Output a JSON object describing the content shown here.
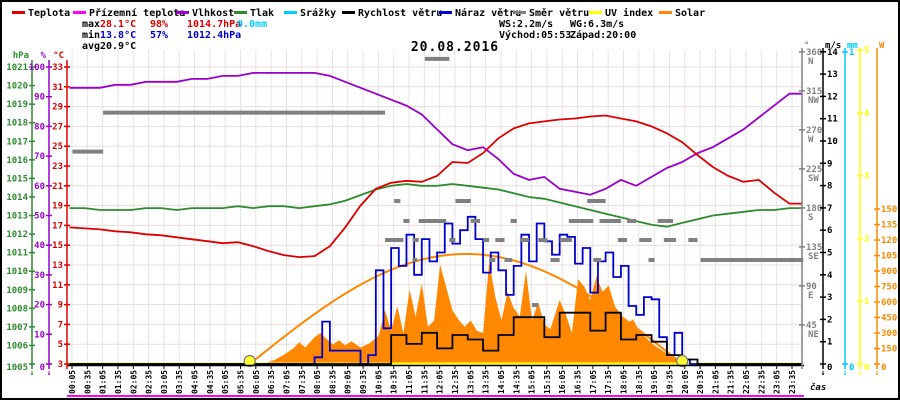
{
  "title": "20.08.2016",
  "legend": {
    "items": [
      {
        "label": "Teplota",
        "color": "#dd0000"
      },
      {
        "label": "Přízemní teplota",
        "color": "#ff00ff"
      },
      {
        "label": "Vlhkost",
        "color": "#9900cc"
      },
      {
        "label": "Tlak",
        "color": "#2e8b2e"
      },
      {
        "label": "Srážky",
        "color": "#00ccff"
      },
      {
        "label": "Rychlost větru",
        "color": "#000000"
      },
      {
        "label": "Náraz větru",
        "color": "#0000cc"
      },
      {
        "label": "Směr větru",
        "color": "#808080"
      },
      {
        "label": "UV index",
        "color": "#ffff00"
      },
      {
        "label": "Solar",
        "color": "#ff8800"
      }
    ]
  },
  "stats": {
    "max": {
      "label": "max",
      "temp": "28.1°C",
      "hum": "98%",
      "pres": "1014.7hPa",
      "rain": "0.0mm",
      "color": "#dd0000",
      "rain_color": "#00ccff"
    },
    "min": {
      "label": "min",
      "temp": "13.8°C",
      "hum": "57%",
      "pres": "1012.4hPa",
      "color": "#0000cc"
    },
    "avg": {
      "label": "avg",
      "temp": "20.9°C",
      "color": "#000000"
    },
    "wind": {
      "ws": "WS:2.2m/s",
      "wg": "WG:6.3m/s"
    },
    "sun": {
      "sunrise": "Východ:05:53",
      "sunset": "Západ:20:00"
    }
  },
  "x_axis": {
    "label": "čas",
    "ticks": [
      "00:05",
      "00:35",
      "01:05",
      "01:35",
      "02:05",
      "02:35",
      "03:05",
      "03:35",
      "04:05",
      "04:35",
      "05:05",
      "05:35",
      "06:05",
      "06:35",
      "07:05",
      "07:35",
      "08:05",
      "08:35",
      "09:05",
      "09:35",
      "10:05",
      "10:35",
      "11:05",
      "11:35",
      "12:05",
      "12:35",
      "13:05",
      "13:35",
      "14:05",
      "14:35",
      "15:05",
      "15:35",
      "16:05",
      "16:35",
      "17:05",
      "17:35",
      "18:05",
      "18:35",
      "19:05",
      "19:35",
      "20:05",
      "20:35",
      "21:05",
      "21:35",
      "22:05",
      "22:35",
      "23:05",
      "23:35"
    ]
  },
  "axes": {
    "left": [
      {
        "id": "pres",
        "header": "hPa",
        "color": "#2e8b2e",
        "ticks": [
          1005,
          1006,
          1007,
          1008,
          1009,
          1010,
          1011,
          1012,
          1013,
          1014,
          1015,
          1016,
          1017,
          1018,
          1019,
          1020,
          1021
        ]
      },
      {
        "id": "hum",
        "header": "%",
        "color": "#9900cc",
        "ticks": [
          0,
          10,
          20,
          30,
          40,
          50,
          60,
          70,
          80,
          90,
          100
        ]
      },
      {
        "id": "temp",
        "header": "°C",
        "color": "#dd0000",
        "ticks": [
          3,
          5,
          7,
          9,
          11,
          13,
          15,
          17,
          19,
          21,
          23,
          25,
          27,
          29,
          31,
          33
        ]
      }
    ],
    "right": [
      {
        "id": "dir",
        "header": "°",
        "color": "#808080",
        "ticks": [
          {
            "v": 45,
            "t": "45",
            "s": "NE"
          },
          {
            "v": 90,
            "t": "90",
            "s": "E"
          },
          {
            "v": 135,
            "t": "135",
            "s": "SE"
          },
          {
            "v": 180,
            "t": "180",
            "s": "S"
          },
          {
            "v": 225,
            "t": "225",
            "s": "SW"
          },
          {
            "v": 270,
            "t": "270",
            "s": "W"
          },
          {
            "v": 315,
            "t": "315",
            "s": "NW"
          },
          {
            "v": 360,
            "t": "360",
            "s": "N"
          }
        ]
      },
      {
        "id": "wind",
        "header": "m/s",
        "color": "#000000",
        "ticks": [
          0,
          1,
          2,
          3,
          4,
          5,
          6,
          7,
          8,
          9,
          10,
          11,
          12,
          13,
          14
        ]
      },
      {
        "id": "mm",
        "header": "mm",
        "color": "#00ccff",
        "ticks": [
          0,
          1
        ]
      },
      {
        "id": "uv",
        "header": "",
        "color": "#ffff00",
        "ticks": [
          0,
          1,
          2,
          3,
          4,
          5
        ]
      },
      {
        "id": "solar",
        "header": "W",
        "color": "#ff8800",
        "ticks": [
          0,
          150,
          300,
          450,
          600,
          750,
          900,
          1050,
          1200,
          1350,
          1500
        ]
      }
    ]
  },
  "chart_data": {
    "type": "line",
    "date": "20.08.2016",
    "time_start": "00:05",
    "time_end": "23:35",
    "time_step_minutes": 30,
    "series": [
      {
        "name": "Teplota",
        "unit": "°C",
        "axis": "temp",
        "color": "#dd0000",
        "style": "line",
        "t_step": 0.5,
        "values": [
          16.8,
          16.7,
          16.6,
          16.4,
          16.3,
          16.1,
          16.0,
          15.8,
          15.6,
          15.4,
          15.2,
          15.3,
          14.9,
          14.4,
          14.0,
          13.8,
          13.9,
          14.9,
          16.8,
          19.0,
          20.7,
          21.3,
          21.5,
          21.4,
          22.0,
          23.4,
          23.3,
          24.3,
          25.8,
          26.8,
          27.3,
          27.5,
          27.7,
          27.8,
          28.0,
          28.1,
          27.8,
          27.5,
          27.0,
          26.3,
          25.4,
          24.1,
          22.9,
          22.0,
          21.4,
          21.6,
          20.3,
          19.2
        ]
      },
      {
        "name": "Vlhkost",
        "unit": "%",
        "axis": "hum",
        "color": "#9900cc",
        "style": "line",
        "t_step": 0.5,
        "values": [
          93,
          93,
          93,
          94,
          94,
          95,
          95,
          95,
          96,
          96,
          97,
          97,
          98,
          98,
          98,
          98,
          98,
          97,
          95,
          93,
          91,
          89,
          87,
          84,
          79,
          74,
          72,
          73,
          69,
          64,
          62,
          63,
          59,
          58,
          57,
          59,
          62,
          60,
          63,
          66,
          68,
          71,
          73,
          76,
          79,
          83,
          87,
          91
        ]
      },
      {
        "name": "Tlak",
        "unit": "hPa",
        "axis": "pres",
        "color": "#2e8b2e",
        "style": "line",
        "t_step": 0.5,
        "values": [
          1013.4,
          1013.4,
          1013.3,
          1013.3,
          1013.3,
          1013.4,
          1013.4,
          1013.3,
          1013.4,
          1013.4,
          1013.4,
          1013.5,
          1013.4,
          1013.5,
          1013.5,
          1013.4,
          1013.5,
          1013.6,
          1013.8,
          1014.1,
          1014.4,
          1014.6,
          1014.7,
          1014.6,
          1014.6,
          1014.7,
          1014.6,
          1014.5,
          1014.4,
          1014.2,
          1014.0,
          1013.9,
          1013.7,
          1013.5,
          1013.3,
          1013.1,
          1012.9,
          1012.7,
          1012.5,
          1012.4,
          1012.6,
          1012.8,
          1013.0,
          1013.1,
          1013.2,
          1013.3,
          1013.3,
          1013.4
        ]
      },
      {
        "name": "Rychlost větru",
        "unit": "m/s",
        "axis": "wind",
        "color": "#000000",
        "style": "step",
        "t_step": 0.5,
        "values": [
          0,
          0,
          0,
          0,
          0,
          0,
          0,
          0,
          0,
          0,
          0,
          0,
          0,
          0,
          0,
          0,
          0,
          0,
          0,
          0,
          0,
          1.3,
          0.9,
          1.4,
          0.7,
          1.3,
          1.1,
          0.6,
          1.3,
          2.1,
          2.1,
          1.2,
          2.3,
          2.3,
          1.5,
          2.3,
          1.1,
          1.3,
          1.0,
          0.4,
          0.2,
          0,
          0,
          0,
          0,
          0,
          0,
          0
        ]
      },
      {
        "name": "Náraz větru",
        "unit": "m/s",
        "axis": "wind",
        "color": "#0000cc",
        "style": "step",
        "t_step": 0.25,
        "values": [
          0,
          0,
          0,
          0,
          0,
          0,
          0,
          0,
          0,
          0,
          0,
          0,
          0,
          0,
          0,
          0,
          0,
          0,
          0,
          0,
          0,
          0,
          0,
          0,
          0,
          0,
          0,
          0,
          0,
          0,
          0,
          0,
          0.3,
          1.9,
          0.6,
          0.6,
          0.6,
          0.6,
          0,
          0.4,
          4.2,
          1.6,
          5.2,
          4.4,
          5.8,
          4.0,
          5.6,
          4.6,
          5.0,
          6.3,
          5.4,
          6.0,
          6.6,
          5.6,
          4.1,
          5.0,
          4.2,
          3.1,
          4.4,
          5.8,
          4.6,
          6.3,
          5.5,
          4.9,
          5.8,
          5.7,
          4.5,
          5.2,
          3.2,
          4.6,
          5.0,
          3.9,
          4.4,
          2.6,
          2.2,
          3.0,
          2.9,
          1.2,
          0.4,
          1.4,
          0.2,
          0,
          0,
          0,
          0,
          0,
          0,
          0,
          0,
          0,
          0,
          0,
          0,
          0,
          0,
          0
        ]
      },
      {
        "name": "UV index",
        "unit": "",
        "axis": "uv",
        "color": "#ffff00",
        "style": "constant",
        "value": 0
      },
      {
        "name": "Srážky",
        "unit": "mm",
        "axis": "mm",
        "color": "#00ccff",
        "style": "constant",
        "value": 0
      },
      {
        "name": "Přízemní teplota",
        "unit": "°C",
        "axis": "temp",
        "color": "#ff00ff",
        "style": "offplot-line"
      }
    ],
    "solar_actual": {
      "name": "Solar",
      "unit": "W",
      "axis": "solar",
      "color": "#ff8800",
      "points": [
        [
          6.4,
          10
        ],
        [
          6.7,
          40
        ],
        [
          7.0,
          90
        ],
        [
          7.3,
          150
        ],
        [
          7.5,
          210
        ],
        [
          7.7,
          160
        ],
        [
          8.0,
          260
        ],
        [
          8.2,
          300
        ],
        [
          8.4,
          240
        ],
        [
          8.6,
          190
        ],
        [
          8.8,
          230
        ],
        [
          9.0,
          180
        ],
        [
          9.2,
          220
        ],
        [
          9.5,
          160
        ],
        [
          9.8,
          200
        ],
        [
          10.1,
          280
        ],
        [
          10.3,
          520
        ],
        [
          10.5,
          320
        ],
        [
          10.7,
          560
        ],
        [
          10.9,
          300
        ],
        [
          11.1,
          720
        ],
        [
          11.3,
          460
        ],
        [
          11.5,
          780
        ],
        [
          11.7,
          360
        ],
        [
          11.9,
          420
        ],
        [
          12.1,
          960
        ],
        [
          12.3,
          740
        ],
        [
          12.5,
          520
        ],
        [
          12.7,
          430
        ],
        [
          12.9,
          360
        ],
        [
          13.1,
          420
        ],
        [
          13.3,
          320
        ],
        [
          13.5,
          300
        ],
        [
          13.7,
          990
        ],
        [
          13.9,
          650
        ],
        [
          14.1,
          420
        ],
        [
          14.3,
          700
        ],
        [
          14.5,
          540
        ],
        [
          14.7,
          460
        ],
        [
          14.9,
          900
        ],
        [
          15.1,
          420
        ],
        [
          15.3,
          600
        ],
        [
          15.5,
          380
        ],
        [
          15.7,
          340
        ],
        [
          16.0,
          620
        ],
        [
          16.2,
          480
        ],
        [
          16.4,
          300
        ],
        [
          16.6,
          820
        ],
        [
          16.8,
          750
        ],
        [
          17.0,
          620
        ],
        [
          17.2,
          850
        ],
        [
          17.4,
          700
        ],
        [
          17.6,
          760
        ],
        [
          17.8,
          560
        ],
        [
          18.0,
          480
        ],
        [
          18.2,
          400
        ],
        [
          18.4,
          430
        ],
        [
          18.6,
          320
        ],
        [
          18.8,
          260
        ],
        [
          19.0,
          200
        ],
        [
          19.2,
          160
        ],
        [
          19.5,
          100
        ],
        [
          19.8,
          40
        ],
        [
          20.0,
          0
        ]
      ]
    },
    "solar_theoretical": {
      "start": 5.883,
      "end": 20.0,
      "peak": 1065,
      "color": "#ff8800"
    },
    "wind_direction_segments": {
      "unit": "°",
      "color": "#808080",
      "segments": [
        [
          0.1,
          1.1,
          245
        ],
        [
          1.1,
          10.3,
          290
        ],
        [
          11.6,
          12.4,
          352
        ],
        [
          10.6,
          10.8,
          188
        ],
        [
          12.6,
          13.1,
          188
        ],
        [
          16.9,
          17.5,
          188
        ],
        [
          10.9,
          11.1,
          165
        ],
        [
          11.4,
          12.3,
          165
        ],
        [
          13.1,
          13.4,
          165
        ],
        [
          14.4,
          14.6,
          165
        ],
        [
          16.3,
          17.1,
          165
        ],
        [
          17.3,
          18.0,
          165
        ],
        [
          18.2,
          18.5,
          165
        ],
        [
          19.2,
          19.7,
          165
        ],
        [
          10.3,
          10.9,
          143
        ],
        [
          11.2,
          11.4,
          143
        ],
        [
          12.4,
          12.6,
          143
        ],
        [
          13.5,
          13.7,
          143
        ],
        [
          13.9,
          14.2,
          143
        ],
        [
          14.7,
          15.0,
          143
        ],
        [
          15.3,
          15.6,
          143
        ],
        [
          16.0,
          16.4,
          143
        ],
        [
          17.9,
          18.2,
          143
        ],
        [
          18.6,
          19.0,
          143
        ],
        [
          19.4,
          19.8,
          143
        ],
        [
          20.2,
          20.5,
          143
        ],
        [
          11.2,
          11.35,
          120
        ],
        [
          13.7,
          13.9,
          120
        ],
        [
          14.2,
          14.45,
          120
        ],
        [
          15.7,
          16.0,
          120
        ],
        [
          17.1,
          17.35,
          120
        ],
        [
          18.9,
          19.1,
          120
        ],
        [
          20.6,
          23.95,
          120
        ],
        [
          15.1,
          15.3,
          68
        ]
      ]
    },
    "sun_markers": {
      "sunrise_t": 5.883,
      "sunset_t": 20.0,
      "fill": "#ffff33"
    },
    "axis_ranges": {
      "temp": [
        3,
        33
      ],
      "hum": [
        0,
        100
      ],
      "pres": [
        1005,
        1021
      ],
      "wind": [
        0,
        14
      ],
      "dir": [
        0,
        360
      ],
      "mm": [
        0,
        1
      ],
      "uv": [
        0,
        5
      ],
      "solar_labeled_to": 1500
    },
    "grid": true,
    "legend_position": "top"
  }
}
